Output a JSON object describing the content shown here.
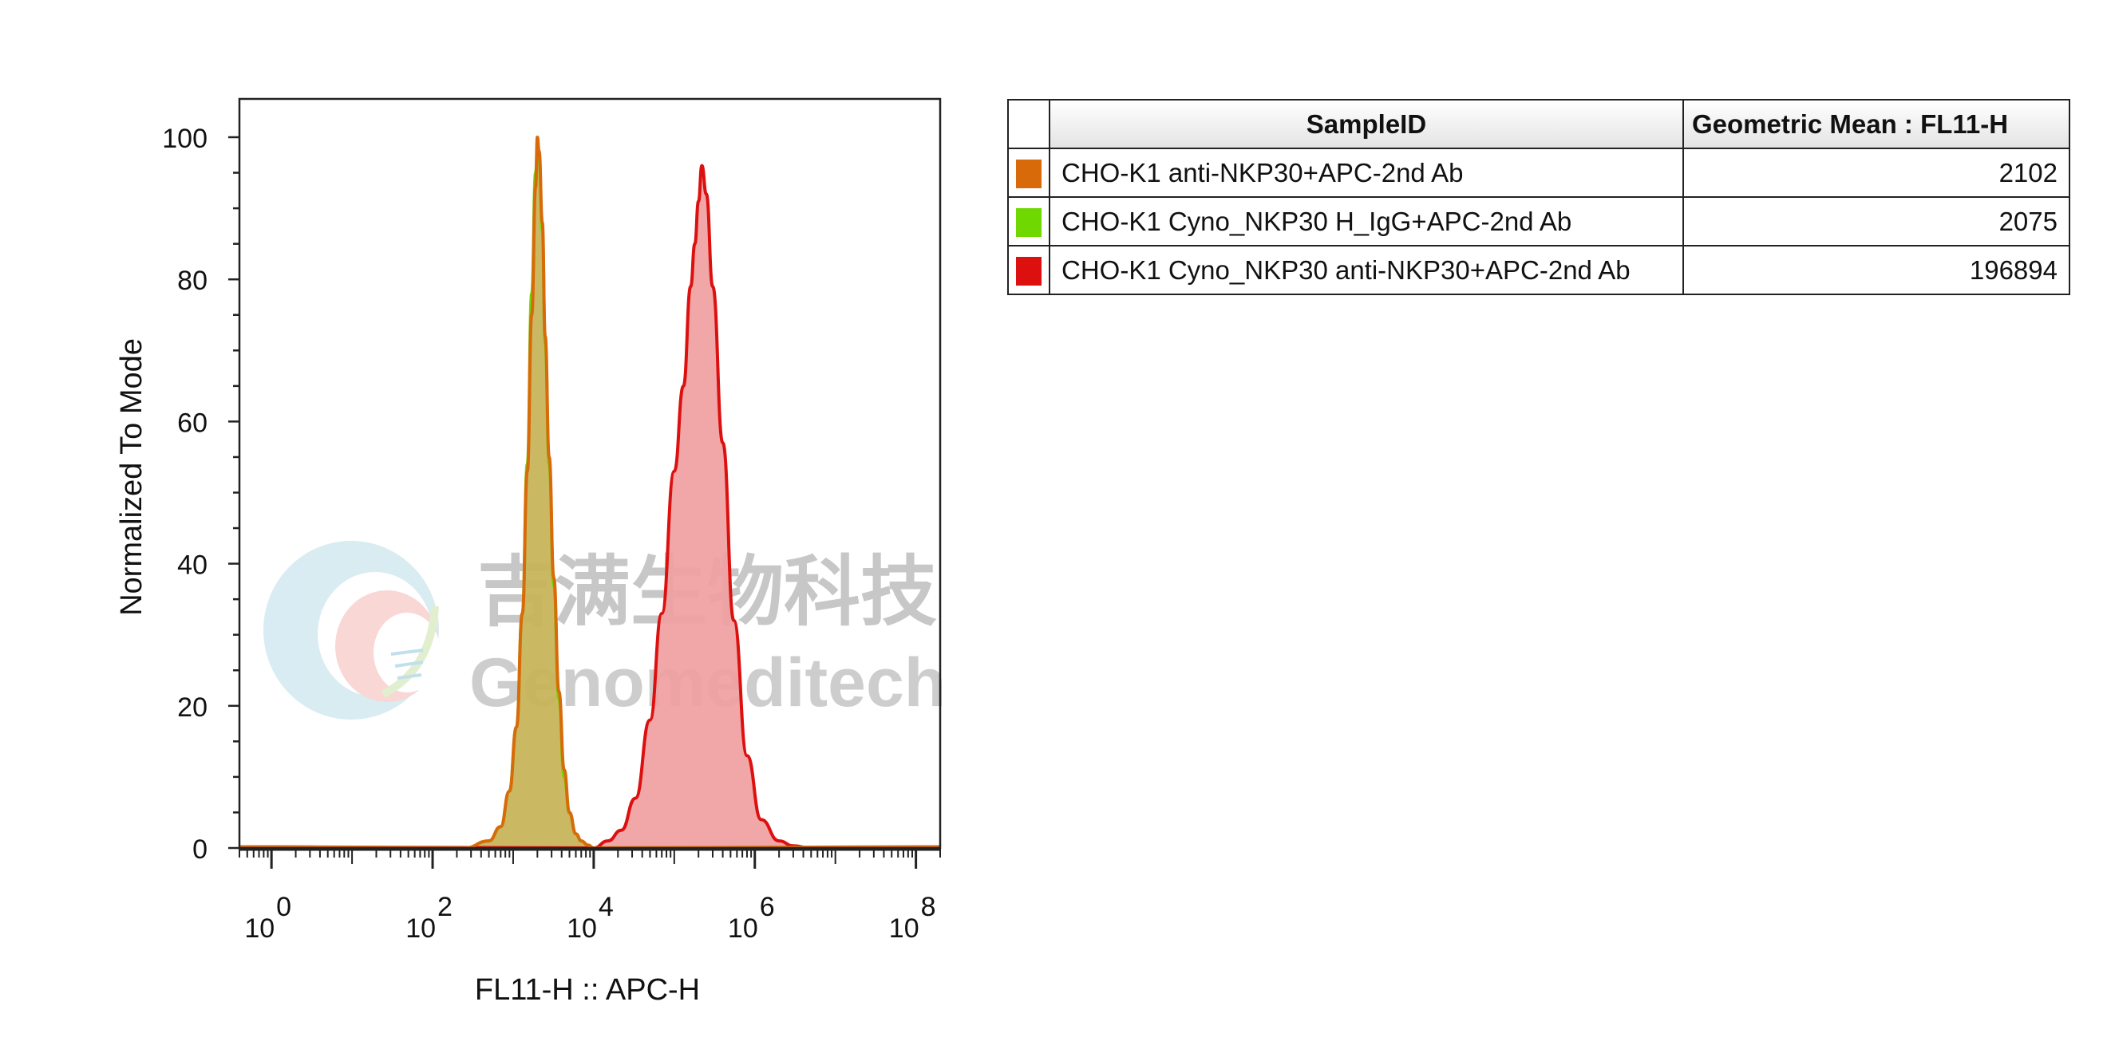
{
  "chart_data": {
    "type": "area",
    "xlabel": "FL11-H :: APC-H",
    "ylabel": "Normalized To Mode",
    "x_scale": "log",
    "xlim": [
      0.4,
      200000000
    ],
    "ylim": [
      0,
      100
    ],
    "y_ticks": [
      0,
      20,
      40,
      60,
      80,
      100
    ],
    "x_ticks": [
      {
        "base": "10",
        "exp": "0",
        "value": 1
      },
      {
        "base": "10",
        "exp": "2",
        "value": 100
      },
      {
        "base": "10",
        "exp": "4",
        "value": 10000
      },
      {
        "base": "10",
        "exp": "6",
        "value": 1000000
      },
      {
        "base": "10",
        "exp": "8",
        "value": 100000000
      }
    ],
    "grid": false,
    "series": [
      {
        "name": "CHO-K1 anti-NKP30+APC-2nd Ab",
        "color": "#d96a0a",
        "fill": "#c8b45a",
        "x": [
          250,
          500,
          700,
          900,
          1100,
          1300,
          1500,
          1700,
          1900,
          2000,
          2100,
          2300,
          2500,
          2800,
          3200,
          3700,
          4300,
          5000,
          6000,
          7000,
          8500,
          10000
        ],
        "y": [
          0,
          1,
          3,
          8,
          17,
          33,
          53,
          75,
          93,
          100,
          98,
          88,
          72,
          55,
          38,
          22,
          11,
          5,
          2,
          1,
          0.4,
          0
        ]
      },
      {
        "name": "CHO-K1 Cyno_NKP30 H_IgG+APC-2nd Ab",
        "color": "#6fd800",
        "fill": "#c8b45a",
        "x": [
          250,
          500,
          700,
          900,
          1100,
          1300,
          1500,
          1700,
          1900,
          2000,
          2100,
          2300,
          2500,
          2800,
          3200,
          3700,
          4300,
          5000,
          6000,
          7000,
          8500,
          10000
        ],
        "y": [
          0,
          1,
          3,
          8,
          17,
          33,
          54,
          78,
          95,
          98,
          97,
          87,
          71,
          54,
          37,
          21,
          10,
          5,
          2,
          1,
          0.4,
          0
        ]
      },
      {
        "name": "CHO-K1 Cyno_NKP30 anti-NKP30+APC-2nd Ab",
        "color": "#dd1010",
        "fill": "#f0a0a0",
        "x": [
          10000,
          15000,
          22000,
          33000,
          50000,
          70000,
          100000,
          130000,
          160000,
          180000,
          200000,
          220000,
          250000,
          300000,
          400000,
          550000,
          800000,
          1200000,
          2000000,
          3000000,
          5000000
        ],
        "y": [
          0,
          1,
          2.5,
          7,
          18,
          33,
          53,
          65,
          79,
          85,
          91,
          96,
          92,
          79,
          57,
          32,
          13,
          4,
          1,
          0.3,
          0
        ]
      }
    ]
  },
  "watermark": {
    "chinese": "吉满生物科技",
    "english": "Genomeditech"
  },
  "table": {
    "headers": {
      "sample": "SampleID",
      "mean": "Geometric Mean : FL11-H"
    },
    "rows": [
      {
        "color": "#d96a0a",
        "sample": "CHO-K1 anti-NKP30+APC-2nd Ab",
        "mean": "2102"
      },
      {
        "color": "#6fd800",
        "sample": "CHO-K1 Cyno_NKP30 H_IgG+APC-2nd Ab",
        "mean": "2075"
      },
      {
        "color": "#dd1010",
        "sample": "CHO-K1 Cyno_NKP30 anti-NKP30+APC-2nd Ab",
        "mean": "196894"
      }
    ]
  }
}
